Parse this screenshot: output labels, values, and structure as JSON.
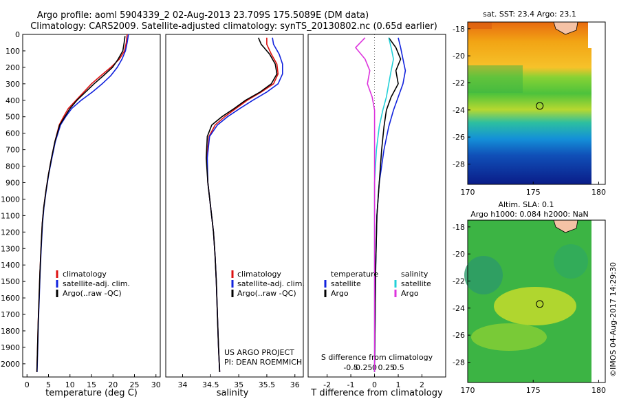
{
  "title": {
    "line1": "Argo profile: aoml 5904339_2 02-Aug-2013 23.709S 175.5089E (DM data)",
    "line2": "Climatology: CARS2009. Satellite-adjusted climatology: synTS_20130802.nc (0.65d earlier)"
  },
  "colors": {
    "climatology": "#dd1111",
    "satellite": "#1122dd",
    "argo": "#000000",
    "sat_salinity": "#22d0d8",
    "argo_salinity": "#dd33dd"
  },
  "chart_data": [
    {
      "id": "temperature",
      "type": "line",
      "xlabel": "temperature (deg C)",
      "ylabel": "",
      "xlim": [
        -1,
        31
      ],
      "ylim": [
        2080,
        0
      ],
      "xticks": [
        0,
        5,
        10,
        15,
        20,
        25,
        30
      ],
      "yticks": [
        0,
        100,
        200,
        300,
        400,
        500,
        600,
        700,
        800,
        900,
        1000,
        1100,
        1200,
        1300,
        1400,
        1500,
        1600,
        1700,
        1800,
        1900,
        2000
      ],
      "legend": [
        "climatology",
        "satellite-adj. clim.",
        "Argo(..raw -QC)"
      ],
      "series": [
        {
          "name": "climatology",
          "color": "#dd1111",
          "x": [
            23.3,
            23.1,
            22.7,
            21.5,
            19.5,
            17.2,
            15.0,
            13.2,
            11.4,
            9.6,
            8.5,
            7.5,
            6.5,
            5.7,
            5.0,
            4.4,
            3.9,
            3.55,
            3.25,
            3.0,
            2.8,
            2.6,
            2.45,
            2.3
          ],
          "y": [
            0,
            50,
            100,
            150,
            200,
            250,
            300,
            350,
            400,
            450,
            500,
            550,
            650,
            750,
            850,
            950,
            1050,
            1150,
            1300,
            1450,
            1600,
            1750,
            1900,
            2050
          ]
        },
        {
          "name": "satellite-adj. clim.",
          "color": "#1122dd",
          "x": [
            23.6,
            23.3,
            22.9,
            22.1,
            21.0,
            19.5,
            17.5,
            15.2,
            12.6,
            10.4,
            9.0,
            7.8,
            6.6,
            5.8,
            5.05,
            4.45,
            3.95,
            3.6,
            3.3,
            3.05,
            2.85,
            2.65,
            2.5,
            2.35
          ],
          "y": [
            0,
            50,
            100,
            150,
            200,
            250,
            300,
            350,
            400,
            450,
            500,
            550,
            650,
            750,
            850,
            950,
            1050,
            1150,
            1300,
            1450,
            1600,
            1750,
            1900,
            2050
          ]
        },
        {
          "name": "Argo(..raw -QC)",
          "color": "#000000",
          "x": [
            22.8,
            22.6,
            22.3,
            21.2,
            19.9,
            17.8,
            15.6,
            13.6,
            11.6,
            10.0,
            8.8,
            7.6,
            6.5,
            5.7,
            5.0,
            4.4,
            3.9,
            3.55,
            3.25,
            3.0,
            2.8,
            2.6,
            2.45,
            2.3
          ],
          "y": [
            10,
            50,
            100,
            150,
            200,
            250,
            300,
            350,
            400,
            450,
            500,
            550,
            650,
            750,
            850,
            950,
            1050,
            1150,
            1300,
            1450,
            1600,
            1750,
            1900,
            2050
          ]
        }
      ]
    },
    {
      "id": "salinity",
      "type": "line",
      "xlabel": "salinity",
      "xlim": [
        33.7,
        36.15
      ],
      "ylim": [
        2080,
        0
      ],
      "xticks": [
        34,
        34.5,
        35,
        35.5,
        36
      ],
      "legend": [
        "climatology",
        "satellite-adj. clim.",
        "Argo(..raw -QC)"
      ],
      "series": [
        {
          "name": "climatology",
          "color": "#dd1111",
          "x": [
            35.5,
            35.5,
            35.58,
            35.68,
            35.7,
            35.62,
            35.4,
            35.15,
            34.95,
            34.75,
            34.58,
            34.47,
            34.43,
            34.45,
            34.5,
            34.55,
            34.58,
            34.6,
            34.62,
            34.64,
            34.66
          ],
          "y": [
            20,
            60,
            120,
            180,
            240,
            300,
            350,
            400,
            450,
            500,
            550,
            620,
            750,
            900,
            1050,
            1200,
            1350,
            1500,
            1700,
            1900,
            2050
          ]
        },
        {
          "name": "satellite-adj. clim.",
          "color": "#1122dd",
          "x": [
            35.6,
            35.62,
            35.72,
            35.78,
            35.78,
            35.7,
            35.5,
            35.25,
            35.02,
            34.8,
            34.62,
            34.48,
            34.44,
            34.45,
            34.5,
            34.55,
            34.58,
            34.6,
            34.62,
            34.64,
            34.66
          ],
          "y": [
            20,
            60,
            120,
            180,
            240,
            300,
            350,
            400,
            450,
            500,
            550,
            620,
            750,
            900,
            1050,
            1200,
            1350,
            1500,
            1700,
            1900,
            2050
          ]
        },
        {
          "name": "Argo(..raw -QC)",
          "color": "#000000",
          "x": [
            35.35,
            35.4,
            35.55,
            35.65,
            35.68,
            35.58,
            35.38,
            35.12,
            34.92,
            34.7,
            34.52,
            34.44,
            34.42,
            34.45,
            34.5,
            34.55,
            34.58,
            34.6,
            34.62,
            34.64,
            34.66
          ],
          "y": [
            20,
            60,
            120,
            180,
            240,
            300,
            350,
            400,
            450,
            500,
            550,
            620,
            750,
            900,
            1050,
            1200,
            1350,
            1500,
            1700,
            1900,
            2050
          ]
        }
      ],
      "annotation": [
        "US ARGO PROJECT",
        "PI: DEAN ROEMMICH"
      ]
    },
    {
      "id": "difference",
      "type": "line",
      "xlabel": "T difference from climatology",
      "x2label": "S difference from climatology",
      "xlim": [
        -2.8,
        3.0
      ],
      "ylim": [
        2080,
        0
      ],
      "xticks": [
        -2,
        -1,
        0,
        1,
        2
      ],
      "x2ticks_labels": [
        "-0.5",
        "-0.25",
        "0",
        "0.25",
        "0.5"
      ],
      "legend_temperature_title": "temperature",
      "legend_salinity_title": "salinity",
      "legend_labels": [
        "satellite",
        "Argo",
        "satellite",
        "Argo"
      ],
      "series": [
        {
          "name": "temperature satellite",
          "color": "#1122dd",
          "x": [
            1.0,
            1.1,
            1.2,
            1.3,
            1.2,
            1.0,
            0.8,
            0.6,
            0.4,
            0.2,
            0.1,
            0.05,
            0.0
          ],
          "y": [
            20,
            80,
            150,
            220,
            300,
            380,
            460,
            560,
            700,
            900,
            1100,
            1400,
            2050
          ]
        },
        {
          "name": "temperature Argo",
          "color": "#000000",
          "x": [
            0.6,
            0.9,
            1.1,
            0.9,
            1.0,
            0.7,
            0.5,
            0.4,
            0.3,
            0.2,
            0.1,
            0.05,
            0.0
          ],
          "y": [
            20,
            80,
            150,
            220,
            300,
            380,
            460,
            560,
            700,
            900,
            1100,
            1400,
            2050
          ]
        },
        {
          "name": "salinity satellite",
          "color": "#22d0d8",
          "x": [
            0.6,
            0.7,
            0.8,
            0.7,
            0.6,
            0.5,
            0.35,
            0.2,
            0.08,
            0.0,
            0.0,
            0.0,
            0.0
          ],
          "y": [
            20,
            80,
            150,
            220,
            300,
            380,
            460,
            560,
            700,
            900,
            1100,
            1400,
            2050
          ]
        },
        {
          "name": "salinity Argo",
          "color": "#dd33dd",
          "x": [
            -0.4,
            -0.8,
            -0.4,
            -0.2,
            -0.3,
            -0.1,
            0.0,
            0.0,
            0.0,
            0.0,
            0.0,
            0.0,
            0.0
          ],
          "y": [
            20,
            80,
            150,
            220,
            300,
            380,
            460,
            560,
            700,
            900,
            1100,
            1400,
            2050
          ]
        }
      ]
    },
    {
      "id": "sst-map",
      "type": "heatmap",
      "title": "sat. SST: 23.4  Argo: 23.1",
      "xlim": [
        170,
        180.5
      ],
      "ylim": [
        -29.5,
        -17.5
      ],
      "xticks": [
        170,
        175,
        180
      ],
      "yticks": [
        -18,
        -20,
        -22,
        -24,
        -26,
        -28
      ],
      "marker": {
        "lon": 175.5,
        "lat": -23.7
      }
    },
    {
      "id": "sla-map",
      "type": "heatmap",
      "title": "Altim. SLA: 0.1",
      "subtitle": "Argo h1000: 0.084  h2000: NaN",
      "xlim": [
        170,
        180.5
      ],
      "ylim": [
        -29.5,
        -17.5
      ],
      "xticks": [
        170,
        175,
        180
      ],
      "yticks": [
        -18,
        -20,
        -22,
        -24,
        -26,
        -28
      ],
      "marker": {
        "lon": 175.5,
        "lat": -23.7
      }
    }
  ],
  "credit": "©IMOS 04-Aug-2017 14:29:30"
}
